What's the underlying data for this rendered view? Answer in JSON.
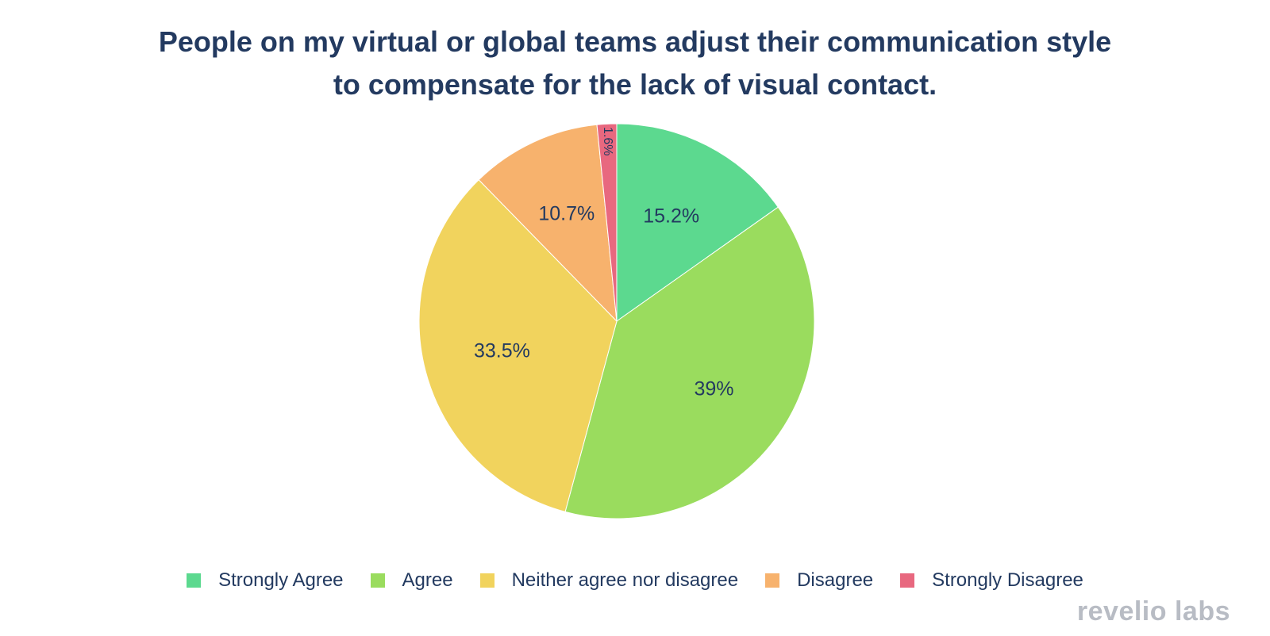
{
  "chart_data": {
    "type": "pie",
    "title_lines": [
      "People on my virtual or global teams adjust their communication style",
      "to compensate for the lack of visual contact."
    ],
    "slices": [
      {
        "label": "Strongly Agree",
        "value": 15.2,
        "text": "15.2%",
        "color": "#5cd98f"
      },
      {
        "label": "Agree",
        "value": 39,
        "text": "39%",
        "color": "#9adc5e"
      },
      {
        "label": "Neither agree nor disagree",
        "value": 33.5,
        "text": "33.5%",
        "color": "#f1d35d"
      },
      {
        "label": "Disagree",
        "value": 10.7,
        "text": "10.7%",
        "color": "#f7b26d"
      },
      {
        "label": "Strongly Disagree",
        "value": 1.6,
        "text": "1.6%",
        "color": "#e8687f"
      }
    ],
    "start": "12 o'clock",
    "direction": "clockwise",
    "legend_position": "bottom"
  },
  "logo_text": "revelio labs",
  "colors": {
    "text": "#233a60",
    "logo": "#b8bcc4"
  }
}
